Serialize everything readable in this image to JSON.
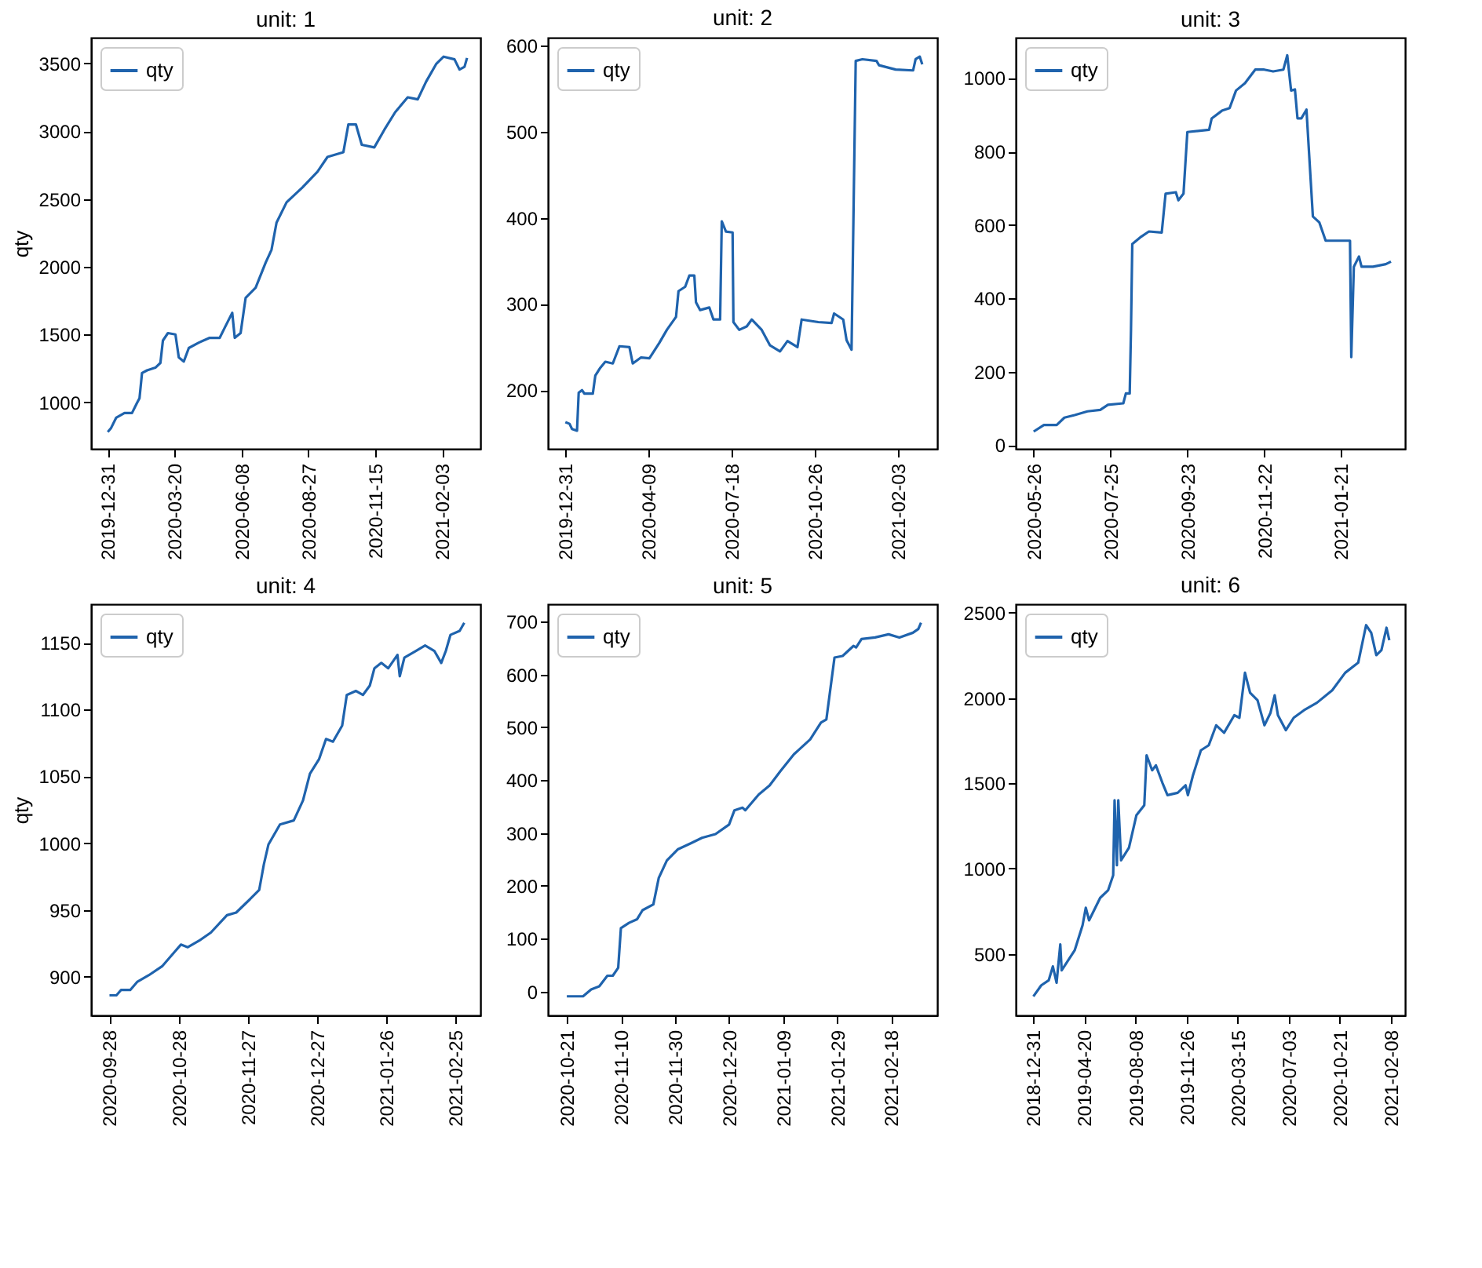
{
  "chart_data": [
    {
      "type": "line",
      "title": "unit: 1",
      "ylabel": "qty",
      "legend": "top left",
      "grid": false,
      "xlim": [
        "2019-12-11",
        "2021-03-21"
      ],
      "xticks": [
        "2019-12-31",
        "2020-03-20",
        "2020-06-08",
        "2020-08-27",
        "2020-11-15",
        "2021-02-03"
      ],
      "ylim": [
        656,
        3690
      ],
      "yticks": [
        1000,
        1500,
        2000,
        2500,
        3000,
        3500
      ],
      "x": [
        "2019-12-31",
        "2020-01-04",
        "2020-01-10",
        "2020-01-20",
        "2020-01-29",
        "2020-02-04",
        "2020-02-07",
        "2020-02-10",
        "2020-02-16",
        "2020-02-26",
        "2020-03-03",
        "2020-03-06",
        "2020-03-12",
        "2020-03-21",
        "2020-03-25",
        "2020-03-31",
        "2020-04-06",
        "2020-04-18",
        "2020-05-01",
        "2020-05-13",
        "2020-05-19",
        "2020-05-28",
        "2020-05-31",
        "2020-06-07",
        "2020-06-13",
        "2020-06-25",
        "2020-07-07",
        "2020-07-14",
        "2020-07-20",
        "2020-08-01",
        "2020-08-20",
        "2020-09-07",
        "2020-09-19",
        "2020-10-08",
        "2020-10-14",
        "2020-10-23",
        "2020-10-30",
        "2020-11-14",
        "2020-11-26",
        "2020-12-09",
        "2020-12-24",
        "2021-01-05",
        "2021-01-15",
        "2021-01-27",
        "2021-02-05",
        "2021-02-18",
        "2021-02-24",
        "2021-03-02",
        "2021-03-05"
      ],
      "series": [
        {
          "name": "qty",
          "color": "#1f63ad",
          "values": [
            780,
            810,
            885,
            920,
            920,
            995,
            1030,
            1215,
            1235,
            1255,
            1290,
            1455,
            1510,
            1500,
            1330,
            1300,
            1400,
            1440,
            1475,
            1475,
            1550,
            1660,
            1475,
            1510,
            1770,
            1845,
            2030,
            2125,
            2325,
            2475,
            2585,
            2700,
            2810,
            2845,
            3050,
            3050,
            2900,
            2880,
            3010,
            3140,
            3250,
            3235,
            3365,
            3495,
            3550,
            3530,
            3455,
            3475,
            3540
          ]
        }
      ]
    },
    {
      "type": "line",
      "title": "unit: 2",
      "legend": "top left",
      "grid": false,
      "xlim": [
        "2019-12-10",
        "2021-03-22"
      ],
      "xticks": [
        "2019-12-31",
        "2020-04-09",
        "2020-07-18",
        "2020-10-26",
        "2021-02-03"
      ],
      "ylim": [
        132,
        609
      ],
      "yticks": [
        200,
        300,
        400,
        500,
        600
      ],
      "x": [
        "2019-12-31",
        "2020-01-05",
        "2020-01-08",
        "2020-01-14",
        "2020-01-16",
        "2020-01-20",
        "2020-01-23",
        "2020-02-02",
        "2020-02-05",
        "2020-02-11",
        "2020-02-17",
        "2020-02-26",
        "2020-03-05",
        "2020-03-17",
        "2020-03-21",
        "2020-03-31",
        "2020-04-10",
        "2020-04-22",
        "2020-05-01",
        "2020-05-12",
        "2020-05-15",
        "2020-05-23",
        "2020-05-28",
        "2020-06-03",
        "2020-06-05",
        "2020-06-10",
        "2020-06-21",
        "2020-06-26",
        "2020-07-04",
        "2020-07-06",
        "2020-07-11",
        "2020-07-19",
        "2020-07-20",
        "2020-07-27",
        "2020-08-05",
        "2020-08-11",
        "2020-08-23",
        "2020-09-02",
        "2020-09-14",
        "2020-09-23",
        "2020-10-05",
        "2020-10-10",
        "2020-10-30",
        "2020-11-15",
        "2020-11-18",
        "2020-11-29",
        "2020-12-03",
        "2020-12-09",
        "2020-12-14",
        "2020-12-22",
        "2021-01-08",
        "2021-01-11",
        "2021-01-31",
        "2021-02-21",
        "2021-02-24",
        "2021-03-01",
        "2021-03-04"
      ],
      "series": [
        {
          "name": "qty",
          "color": "#1f63ad",
          "values": [
            163,
            161,
            155,
            153,
            197,
            200,
            196,
            196,
            217,
            226,
            233,
            231,
            251,
            250,
            231,
            238,
            237,
            255,
            270,
            285,
            315,
            320,
            333,
            333,
            302,
            293,
            296,
            282,
            282,
            396,
            384,
            383,
            279,
            270,
            274,
            282,
            270,
            252,
            245,
            257,
            250,
            282,
            279,
            278,
            289,
            282,
            258,
            247,
            582,
            584,
            582,
            577,
            572,
            571,
            584,
            587,
            578
          ]
        }
      ]
    },
    {
      "type": "line",
      "title": "unit: 3",
      "legend": "top left",
      "grid": false,
      "xlim": [
        "2020-05-12",
        "2021-03-12"
      ],
      "xticks": [
        "2020-05-26",
        "2020-07-25",
        "2020-09-23",
        "2020-11-22",
        "2021-01-21"
      ],
      "ylim": [
        -10,
        1110
      ],
      "yticks": [
        0,
        200,
        400,
        600,
        800,
        1000
      ],
      "x": [
        "2020-05-26",
        "2020-06-03",
        "2020-06-13",
        "2020-06-19",
        "2020-06-27",
        "2020-07-07",
        "2020-07-17",
        "2020-07-23",
        "2020-08-04",
        "2020-08-06",
        "2020-08-09",
        "2020-08-10",
        "2020-08-11",
        "2020-08-18",
        "2020-08-24",
        "2020-09-03",
        "2020-09-06",
        "2020-09-14",
        "2020-09-16",
        "2020-09-20",
        "2020-09-23",
        "2020-10-10",
        "2020-10-12",
        "2020-10-20",
        "2020-10-26",
        "2020-10-31",
        "2020-11-07",
        "2020-11-15",
        "2020-11-22",
        "2020-11-29",
        "2020-12-07",
        "2020-12-10",
        "2020-12-13",
        "2020-12-16",
        "2020-12-18",
        "2020-12-21",
        "2020-12-25",
        "2020-12-30",
        "2021-01-04",
        "2021-01-09",
        "2021-01-28",
        "2021-01-29",
        "2021-01-31",
        "2021-02-04",
        "2021-02-06",
        "2021-02-15",
        "2021-02-25",
        "2021-03-01"
      ],
      "series": [
        {
          "name": "qty",
          "color": "#1f63ad",
          "values": [
            37,
            55,
            55,
            75,
            82,
            92,
            96,
            110,
            114,
            141,
            141,
            315,
            548,
            568,
            582,
            579,
            685,
            689,
            667,
            685,
            853,
            859,
            890,
            911,
            918,
            966,
            986,
            1023,
            1023,
            1018,
            1023,
            1062,
            966,
            969,
            890,
            890,
            914,
            623,
            607,
            557,
            557,
            240,
            486,
            514,
            486,
            486,
            493,
            500
          ]
        }
      ]
    },
    {
      "type": "line",
      "title": "unit: 4",
      "ylabel": "qty",
      "legend": "top left",
      "grid": false,
      "xlim": [
        "2020-09-20",
        "2021-03-08"
      ],
      "xticks": [
        "2020-09-28",
        "2020-10-28",
        "2020-11-27",
        "2020-12-27",
        "2021-01-26",
        "2021-02-25"
      ],
      "ylim": [
        871,
        1179
      ],
      "yticks": [
        900,
        950,
        1000,
        1050,
        1100,
        1150
      ],
      "x": [
        "2020-09-28",
        "2020-10-01",
        "2020-10-03",
        "2020-10-07",
        "2020-10-10",
        "2020-10-15",
        "2020-10-21",
        "2020-10-26",
        "2020-10-29",
        "2020-11-01",
        "2020-11-06",
        "2020-11-11",
        "2020-11-18",
        "2020-11-22",
        "2020-11-28",
        "2020-12-02",
        "2020-12-04",
        "2020-12-06",
        "2020-12-11",
        "2020-12-17",
        "2020-12-21",
        "2020-12-24",
        "2020-12-28",
        "2020-12-31",
        "2021-01-03",
        "2021-01-07",
        "2021-01-09",
        "2021-01-13",
        "2021-01-16",
        "2021-01-19",
        "2021-01-21",
        "2021-01-24",
        "2021-01-27",
        "2021-01-31",
        "2021-02-01",
        "2021-02-03",
        "2021-02-08",
        "2021-02-12",
        "2021-02-16",
        "2021-02-19",
        "2021-02-21",
        "2021-02-23",
        "2021-02-27",
        "2021-03-01"
      ],
      "series": [
        {
          "name": "qty",
          "color": "#1f63ad",
          "values": [
            886,
            886,
            890,
            890,
            896,
            901,
            908,
            918,
            924,
            922,
            927,
            933,
            946,
            948,
            958,
            965,
            984,
            999,
            1014,
            1017,
            1032,
            1052,
            1063,
            1078,
            1076,
            1088,
            1111,
            1114,
            1111,
            1118,
            1131,
            1135,
            1131,
            1141,
            1125,
            1139,
            1144,
            1148,
            1144,
            1135,
            1144,
            1156,
            1159,
            1165
          ]
        }
      ]
    },
    {
      "type": "line",
      "title": "unit: 5",
      "legend": "top left",
      "grid": false,
      "xlim": [
        "2020-10-14",
        "2021-03-07"
      ],
      "xticks": [
        "2020-10-21",
        "2020-11-10",
        "2020-11-30",
        "2020-12-20",
        "2021-01-09",
        "2021-01-29",
        "2021-02-18"
      ],
      "ylim": [
        -45,
        733
      ],
      "yticks": [
        0,
        100,
        200,
        300,
        400,
        500,
        600,
        700
      ],
      "x": [
        "2020-10-21",
        "2020-10-27",
        "2020-10-30",
        "2020-11-02",
        "2020-11-05",
        "2020-11-07",
        "2020-11-09",
        "2020-11-10",
        "2020-11-13",
        "2020-11-16",
        "2020-11-18",
        "2020-11-22",
        "2020-11-24",
        "2020-11-27",
        "2020-12-01",
        "2020-12-06",
        "2020-12-10",
        "2020-12-15",
        "2020-12-20",
        "2020-12-22",
        "2020-12-25",
        "2020-12-26",
        "2020-12-31",
        "2021-01-04",
        "2021-01-08",
        "2021-01-13",
        "2021-01-19",
        "2021-01-23",
        "2021-01-25",
        "2021-01-28",
        "2021-01-31",
        "2021-02-04",
        "2021-02-05",
        "2021-02-07",
        "2021-02-12",
        "2021-02-17",
        "2021-02-21",
        "2021-02-26",
        "2021-02-28",
        "2021-03-01"
      ],
      "series": [
        {
          "name": "qty",
          "color": "#1f63ad",
          "values": [
            -9,
            -9,
            4,
            10,
            30,
            30,
            45,
            120,
            130,
            137,
            154,
            165,
            215,
            248,
            269,
            281,
            291,
            298,
            316,
            343,
            348,
            343,
            373,
            390,
            417,
            449,
            477,
            509,
            515,
            632,
            635,
            654,
            651,
            667,
            670,
            676,
            670,
            679,
            686,
            698
          ]
        }
      ]
    },
    {
      "type": "line",
      "title": "unit: 6",
      "legend": "top left",
      "grid": false,
      "xlim": [
        "2018-11-23",
        "2021-03-11"
      ],
      "xticks": [
        "2018-12-31",
        "2019-04-20",
        "2019-08-08",
        "2019-11-26",
        "2020-03-15",
        "2020-07-03",
        "2020-10-21",
        "2021-02-08"
      ],
      "ylim": [
        139,
        2550
      ],
      "yticks": [
        500,
        1000,
        1500,
        2000,
        2500
      ],
      "x": [
        "2018-12-31",
        "2019-01-17",
        "2019-02-02",
        "2019-02-11",
        "2019-02-19",
        "2019-02-27",
        "2019-03-02",
        "2019-03-30",
        "2019-04-16",
        "2019-04-23",
        "2019-04-30",
        "2019-05-24",
        "2019-06-10",
        "2019-06-21",
        "2019-06-24",
        "2019-06-29",
        "2019-07-02",
        "2019-07-08",
        "2019-07-25",
        "2019-08-10",
        "2019-08-27",
        "2019-09-01",
        "2019-09-13",
        "2019-09-21",
        "2019-10-05",
        "2019-10-16",
        "2019-11-07",
        "2019-11-24",
        "2019-11-29",
        "2019-12-10",
        "2019-12-27",
        "2020-01-13",
        "2020-01-29",
        "2020-02-15",
        "2020-03-08",
        "2020-03-19",
        "2020-03-31",
        "2020-04-11",
        "2020-04-27",
        "2020-05-12",
        "2020-05-25",
        "2020-06-03",
        "2020-06-10",
        "2020-06-27",
        "2020-07-14",
        "2020-08-05",
        "2020-09-02",
        "2020-10-05",
        "2020-11-02",
        "2020-11-30",
        "2020-12-17",
        "2020-12-28",
        "2021-01-08",
        "2021-01-19",
        "2021-01-30",
        "2021-02-05"
      ],
      "series": [
        {
          "name": "qty",
          "color": "#1f63ad",
          "values": [
            250,
            315,
            344,
            426,
            330,
            555,
            403,
            520,
            667,
            770,
            696,
            828,
            872,
            960,
            1400,
            1019,
            1400,
            1048,
            1122,
            1312,
            1371,
            1664,
            1576,
            1605,
            1503,
            1430,
            1444,
            1488,
            1430,
            1547,
            1693,
            1723,
            1840,
            1796,
            1899,
            1884,
            2148,
            2031,
            1987,
            1840,
            1913,
            2016,
            1899,
            1811,
            1884,
            1928,
            1972,
            2045,
            2148,
            2207,
            2427,
            2383,
            2251,
            2280,
            2412,
            2339
          ]
        }
      ]
    }
  ]
}
